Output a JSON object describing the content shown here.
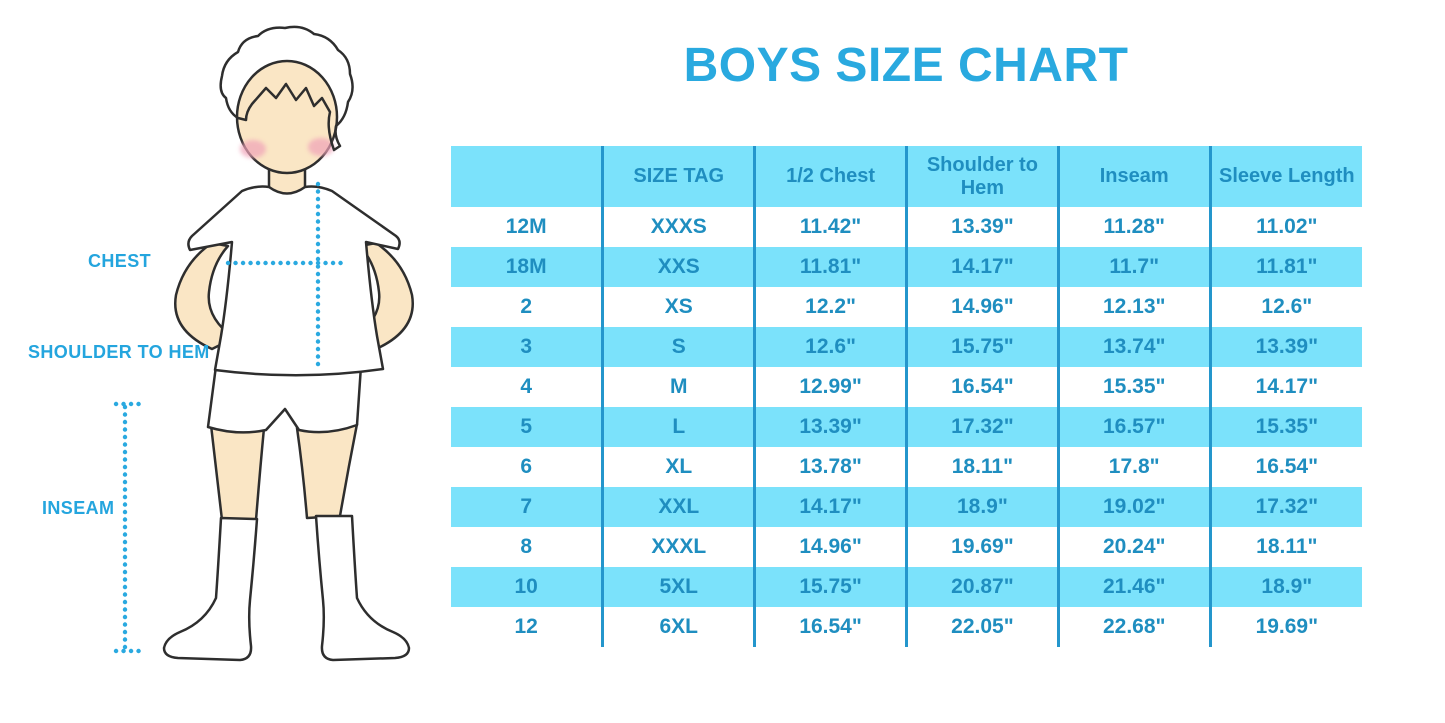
{
  "title": "BOYS SIZE CHART",
  "figure_labels": {
    "chest": "CHEST",
    "shoulder_to_hem": "SHOULDER TO HEM",
    "inseam": "INSEAM"
  },
  "colors": {
    "title": "#29A9DF",
    "labels": "#24A5DE",
    "dotted_lines": "#2AA9E0",
    "table_text": "#1F8EC0",
    "table_row_fill": "#7BE2FB",
    "table_divider": "#2496CC",
    "hair": "#BC9168",
    "skin": "#FAE6C5",
    "blush": "#F0A2B8",
    "outline": "#2E2E2E"
  },
  "chart_data": {
    "type": "table",
    "title": "BOYS SIZE CHART",
    "columns": [
      "",
      "SIZE TAG",
      "1/2 Chest",
      "Shoulder to Hem",
      "Inseam",
      "Sleeve Length"
    ],
    "rows": [
      [
        "12M",
        "XXXS",
        "11.42\"",
        "13.39\"",
        "11.28\"",
        "11.02\""
      ],
      [
        "18M",
        "XXS",
        "11.81\"",
        "14.17\"",
        "11.7\"",
        "11.81\""
      ],
      [
        "2",
        "XS",
        "12.2\"",
        "14.96\"",
        "12.13\"",
        "12.6\""
      ],
      [
        "3",
        "S",
        "12.6\"",
        "15.75\"",
        "13.74\"",
        "13.39\""
      ],
      [
        "4",
        "M",
        "12.99\"",
        "16.54\"",
        "15.35\"",
        "14.17\""
      ],
      [
        "5",
        "L",
        "13.39\"",
        "17.32\"",
        "16.57\"",
        "15.35\""
      ],
      [
        "6",
        "XL",
        "13.78\"",
        "18.11\"",
        "17.8\"",
        "16.54\""
      ],
      [
        "7",
        "XXL",
        "14.17\"",
        "18.9\"",
        "19.02\"",
        "17.32\""
      ],
      [
        "8",
        "XXXL",
        "14.96\"",
        "19.69\"",
        "20.24\"",
        "18.11\""
      ],
      [
        "10",
        "5XL",
        "15.75\"",
        "20.87\"",
        "21.46\"",
        "18.9\""
      ],
      [
        "12",
        "6XL",
        "16.54\"",
        "22.05\"",
        "22.68\"",
        "19.69\""
      ]
    ],
    "row_striping": [
      "white",
      "blue",
      "white",
      "blue",
      "white",
      "blue",
      "white",
      "blue",
      "white",
      "blue",
      "white"
    ],
    "grid": "vertical-dividers-only",
    "header_fill": "#7BE2FB"
  }
}
